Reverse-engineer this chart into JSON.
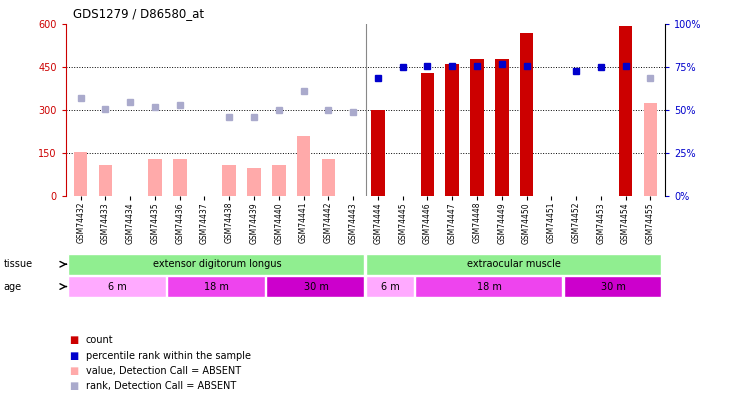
{
  "title": "GDS1279 / D86580_at",
  "samples": [
    "GSM74432",
    "GSM74433",
    "GSM74434",
    "GSM74435",
    "GSM74436",
    "GSM74437",
    "GSM74438",
    "GSM74439",
    "GSM74440",
    "GSM74441",
    "GSM74442",
    "GSM74443",
    "GSM74444",
    "GSM74445",
    "GSM74446",
    "GSM74447",
    "GSM74448",
    "GSM74449",
    "GSM74450",
    "GSM74451",
    "GSM74452",
    "GSM74453",
    "GSM74454",
    "GSM74455"
  ],
  "count_present": [
    null,
    null,
    null,
    null,
    null,
    null,
    null,
    null,
    null,
    null,
    null,
    null,
    300,
    null,
    430,
    460,
    480,
    480,
    570,
    null,
    null,
    null,
    595,
    null
  ],
  "count_absent": [
    155,
    110,
    null,
    130,
    130,
    null,
    110,
    100,
    110,
    210,
    130,
    null,
    null,
    null,
    null,
    null,
    null,
    null,
    null,
    null,
    null,
    null,
    null,
    325
  ],
  "pct_present": [
    null,
    null,
    null,
    null,
    null,
    null,
    null,
    null,
    null,
    null,
    null,
    null,
    69,
    75,
    76,
    76,
    76,
    77,
    76,
    null,
    73,
    75,
    76,
    null
  ],
  "pct_absent": [
    57,
    51,
    55,
    52,
    53,
    null,
    46,
    46,
    50,
    61,
    50,
    49,
    null,
    null,
    null,
    null,
    null,
    null,
    null,
    null,
    null,
    null,
    null,
    69
  ],
  "absent_flags": [
    true,
    true,
    true,
    true,
    true,
    true,
    true,
    true,
    true,
    true,
    true,
    true,
    false,
    false,
    false,
    false,
    false,
    false,
    false,
    false,
    false,
    false,
    false,
    true
  ],
  "bar_color_present": "#cc0000",
  "bar_color_absent": "#ffaaaa",
  "dot_color_present": "#0000cc",
  "dot_color_absent": "#aaaacc",
  "ylim_left": [
    0,
    600
  ],
  "ylim_right": [
    0,
    100
  ],
  "yticks_left": [
    0,
    150,
    300,
    450,
    600
  ],
  "yticks_right": [
    0,
    25,
    50,
    75,
    100
  ],
  "yticklabels_right": [
    "0%",
    "25%",
    "50%",
    "75%",
    "100%"
  ],
  "hlines": [
    150,
    300,
    450
  ],
  "tissue_groups": [
    {
      "label": "extensor digitorum longus",
      "start": 0,
      "end": 12
    },
    {
      "label": "extraocular muscle",
      "start": 12,
      "end": 24
    }
  ],
  "tissue_color": "#90ee90",
  "age_groups": [
    {
      "label": "6 m",
      "start": 0,
      "end": 4,
      "color": "#ffaaff"
    },
    {
      "label": "18 m",
      "start": 4,
      "end": 8,
      "color": "#ee44ee"
    },
    {
      "label": "30 m",
      "start": 8,
      "end": 12,
      "color": "#cc00cc"
    },
    {
      "label": "6 m",
      "start": 12,
      "end": 14,
      "color": "#ffaaff"
    },
    {
      "label": "18 m",
      "start": 14,
      "end": 20,
      "color": "#ee44ee"
    },
    {
      "label": "30 m",
      "start": 20,
      "end": 24,
      "color": "#cc00cc"
    }
  ],
  "legend_items": [
    {
      "color": "#cc0000",
      "label": "count"
    },
    {
      "color": "#0000cc",
      "label": "percentile rank within the sample"
    },
    {
      "color": "#ffaaaa",
      "label": "value, Detection Call = ABSENT"
    },
    {
      "color": "#aaaacc",
      "label": "rank, Detection Call = ABSENT"
    }
  ],
  "bar_width": 0.55
}
